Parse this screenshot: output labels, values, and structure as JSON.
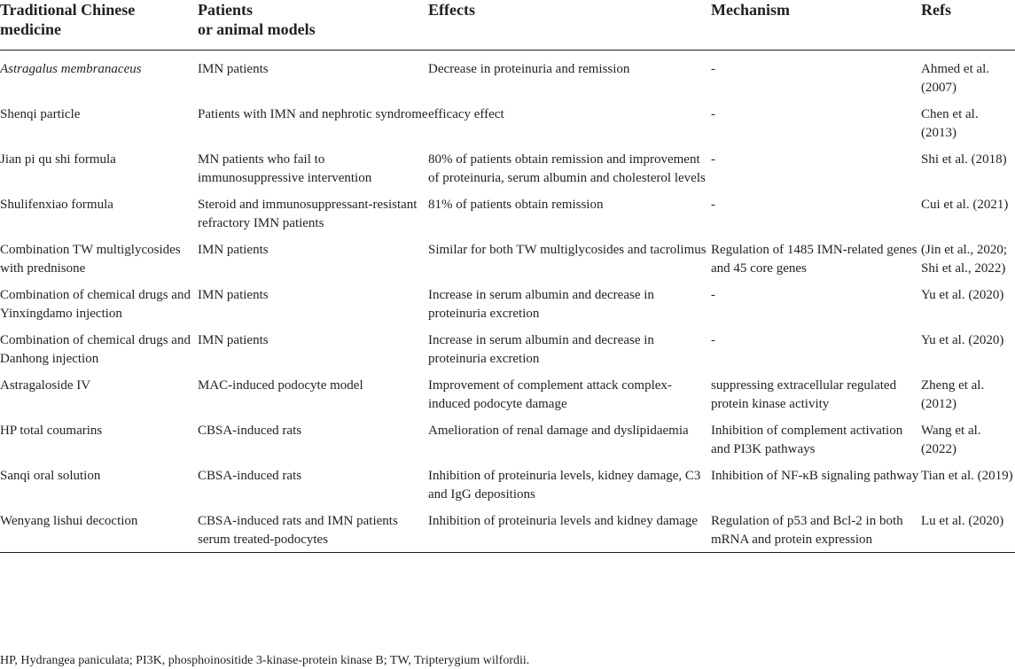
{
  "headers": [
    "Traditional Chinese\nmedicine",
    "Patients\nor animal models",
    "Effects",
    "Mechanism",
    "Refs"
  ],
  "rows": [
    {
      "medicine": "Astragalus membranaceus",
      "model": "IMN patients",
      "effects": "Decrease in proteinuria and remission",
      "mechanism": "-",
      "refs": "Ahmed et al. (2007)"
    },
    {
      "medicine": "Shenqi particle",
      "model": "Patients with IMN and nephrotic syndrome",
      "effects": "efficacy effect",
      "mechanism": "-",
      "refs": "Chen et al. (2013)"
    },
    {
      "medicine": "Jian pi qu shi formula",
      "model": "MN patients who fail to immunosuppressive intervention",
      "effects": "80% of patients obtain remission and improvement of proteinuria, serum albumin and cholesterol levels",
      "mechanism": "-",
      "refs": "Shi et al. (2018)"
    },
    {
      "medicine": "Shulifenxiao formula",
      "model": "Steroid and immunosuppressant-resistant refractory IMN patients",
      "effects": "81% of patients obtain remission",
      "mechanism": "-",
      "refs": "Cui et al. (2021)"
    },
    {
      "medicine": "Combination TW multiglycosides with prednisone",
      "model": "IMN patients",
      "effects": "Similar for both TW multiglycosides and tacrolimus",
      "mechanism": "Regulation of 1485 IMN-related genes and 45 core genes",
      "refs": "(Jin et al., 2020; Shi et al., 2022)"
    },
    {
      "medicine": "Combination of chemical drugs and Yinxingdamo injection",
      "model": "IMN patients",
      "effects": "Increase in serum albumin and decrease in proteinuria excretion",
      "mechanism": "-",
      "refs": "Yu et al. (2020)"
    },
    {
      "medicine": "Combination of chemical drugs and Danhong injection",
      "model": "IMN patients",
      "effects": "Increase in serum albumin and decrease in proteinuria excretion",
      "mechanism": "-",
      "refs": "Yu et al. (2020)"
    },
    {
      "medicine": "Astragaloside IV",
      "model": "MAC-induced podocyte model",
      "effects": "Improvement of complement attack complex-induced podocyte damage",
      "mechanism": "suppressing extracellular regulated protein kinase activity",
      "refs": "Zheng et al. (2012)"
    },
    {
      "medicine": "HP total coumarins",
      "model": "CBSA-induced rats",
      "effects": "Amelioration of renal damage and dyslipidaemia",
      "mechanism": "Inhibition of complement activation and PI3K pathways",
      "refs": "Wang et al. (2022)"
    },
    {
      "medicine": "Sanqi oral solution",
      "model": "CBSA-induced rats",
      "effects": "Inhibition of proteinuria levels, kidney damage, C3 and IgG depositions",
      "mechanism": "Inhibition of NF-κB signaling pathway",
      "refs": "Tian et al. (2019)"
    },
    {
      "medicine": "Wenyang lishui decoction",
      "model": "CBSA-induced rats and IMN patients serum treated-podocytes",
      "effects": "Inhibition of proteinuria levels and kidney damage",
      "mechanism": "Regulation of p53 and Bcl-2 in both mRNA and protein expression",
      "refs": "Lu et al. (2020)"
    }
  ],
  "footnote": "HP, Hydrangea paniculata; PI3K, phosphoinositide 3-kinase-protein kinase B; TW, Tripterygium wilfordii."
}
